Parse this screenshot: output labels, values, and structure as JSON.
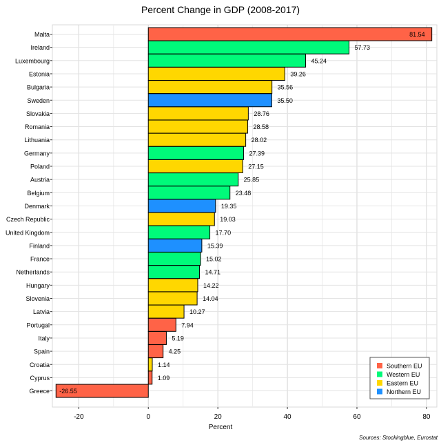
{
  "chart_data": {
    "type": "bar",
    "orientation": "horizontal",
    "title": "Percent Change in GDP (2008-2017)",
    "xlabel": "Percent",
    "ylabel": "",
    "xlim": [
      -27,
      82
    ],
    "xticks": [
      -20,
      0,
      20,
      40,
      60,
      80
    ],
    "grid": true,
    "legend_position": "bottom-right",
    "source": "Sources: Stockingblue, Eurostat",
    "legend": [
      {
        "name": "Southern EU",
        "color": "#FF6347"
      },
      {
        "name": "Western EU",
        "color": "#00FA7A"
      },
      {
        "name": "Eastern EU",
        "color": "#FFD700"
      },
      {
        "name": "Northern EU",
        "color": "#1E90FF"
      }
    ],
    "bars": [
      {
        "country": "Malta",
        "value": 81.54,
        "label": "81.54",
        "region": "Southern EU"
      },
      {
        "country": "Ireland",
        "value": 57.73,
        "label": "57.73",
        "region": "Western EU"
      },
      {
        "country": "Luxembourg",
        "value": 45.24,
        "label": "45.24",
        "region": "Western EU"
      },
      {
        "country": "Estonia",
        "value": 39.26,
        "label": "39.26",
        "region": "Eastern EU"
      },
      {
        "country": "Bulgaria",
        "value": 35.56,
        "label": "35.56",
        "region": "Eastern EU"
      },
      {
        "country": "Sweden",
        "value": 35.5,
        "label": "35.50",
        "region": "Northern EU"
      },
      {
        "country": "Slovakia",
        "value": 28.76,
        "label": "28.76",
        "region": "Eastern EU"
      },
      {
        "country": "Romania",
        "value": 28.58,
        "label": "28.58",
        "region": "Eastern EU"
      },
      {
        "country": "Lithuania",
        "value": 28.02,
        "label": "28.02",
        "region": "Eastern EU"
      },
      {
        "country": "Germany",
        "value": 27.39,
        "label": "27.39",
        "region": "Western EU"
      },
      {
        "country": "Poland",
        "value": 27.15,
        "label": "27.15",
        "region": "Eastern EU"
      },
      {
        "country": "Austria",
        "value": 25.85,
        "label": "25.85",
        "region": "Western EU"
      },
      {
        "country": "Belgium",
        "value": 23.48,
        "label": "23.48",
        "region": "Western EU"
      },
      {
        "country": "Denmark",
        "value": 19.35,
        "label": "19.35",
        "region": "Northern EU"
      },
      {
        "country": "Czech Republic",
        "value": 19.03,
        "label": "19.03",
        "region": "Eastern EU"
      },
      {
        "country": "United Kingdom",
        "value": 17.7,
        "label": "17.70",
        "region": "Western EU"
      },
      {
        "country": "Finland",
        "value": 15.39,
        "label": "15.39",
        "region": "Northern EU"
      },
      {
        "country": "France",
        "value": 15.02,
        "label": "15.02",
        "region": "Western EU"
      },
      {
        "country": "Netherlands",
        "value": 14.71,
        "label": "14.71",
        "region": "Western EU"
      },
      {
        "country": "Hungary",
        "value": 14.22,
        "label": "14.22",
        "region": "Eastern EU"
      },
      {
        "country": "Slovenia",
        "value": 14.04,
        "label": "14.04",
        "region": "Eastern EU"
      },
      {
        "country": "Latvia",
        "value": 10.27,
        "label": "10.27",
        "region": "Eastern EU"
      },
      {
        "country": "Portugal",
        "value": 7.94,
        "label": "7.94",
        "region": "Southern EU"
      },
      {
        "country": "Italy",
        "value": 5.19,
        "label": "5.19",
        "region": "Southern EU"
      },
      {
        "country": "Spain",
        "value": 4.25,
        "label": "4.25",
        "region": "Southern EU"
      },
      {
        "country": "Croatia",
        "value": 1.14,
        "label": "1.14",
        "region": "Eastern EU"
      },
      {
        "country": "Cyprus",
        "value": 1.09,
        "label": "1.09",
        "region": "Southern EU"
      },
      {
        "country": "Greece",
        "value": -26.55,
        "label": "-26.55",
        "region": "Southern EU"
      }
    ]
  }
}
